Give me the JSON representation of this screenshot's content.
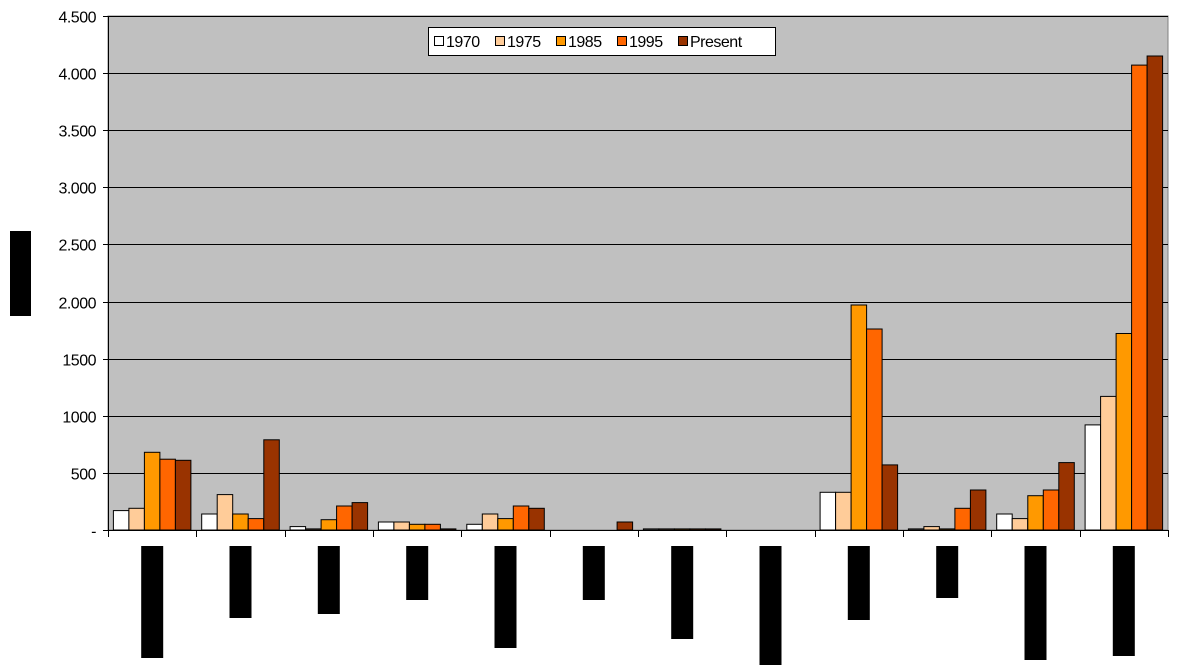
{
  "chart_data": {
    "type": "bar",
    "title": "",
    "xlabel": "",
    "ylabel": "",
    "ylim": [
      0,
      4500
    ],
    "y_ticks": [
      {
        "value": 0,
        "label": "-"
      },
      {
        "value": 500,
        "label": "500"
      },
      {
        "value": 1000,
        "label": "1000"
      },
      {
        "value": 1500,
        "label": "1500"
      },
      {
        "value": 2000,
        "label": "2.000"
      },
      {
        "value": 2500,
        "label": "2.500"
      },
      {
        "value": 3000,
        "label": "3.000"
      },
      {
        "value": 3500,
        "label": "3.500"
      },
      {
        "value": 4000,
        "label": "4.000"
      },
      {
        "value": 4500,
        "label": "4.500"
      }
    ],
    "categories": [
      "",
      "",
      "",
      "",
      "",
      "",
      "",
      "",
      "",
      "",
      "",
      ""
    ],
    "legend_position": "top-center",
    "grid": true,
    "plot_background": "#c0c0c0",
    "series": [
      {
        "name": "1970",
        "color": "#ffffff",
        "values": [
          170,
          140,
          30,
          70,
          50,
          0,
          10,
          0,
          330,
          10,
          140,
          920
        ]
      },
      {
        "name": "1975",
        "color": "#ffcc99",
        "values": [
          190,
          310,
          10,
          70,
          140,
          0,
          10,
          0,
          330,
          30,
          100,
          1170
        ]
      },
      {
        "name": "1985",
        "color": "#ff9900",
        "values": [
          680,
          140,
          90,
          50,
          100,
          0,
          10,
          0,
          1970,
          10,
          300,
          1720
        ]
      },
      {
        "name": "1995",
        "color": "#ff6600",
        "values": [
          620,
          100,
          210,
          50,
          210,
          0,
          10,
          0,
          1760,
          190,
          350,
          4070
        ]
      },
      {
        "name": "Present",
        "color": "#993300",
        "values": [
          610,
          790,
          240,
          10,
          190,
          70,
          10,
          0,
          570,
          350,
          590,
          4150
        ]
      }
    ]
  }
}
